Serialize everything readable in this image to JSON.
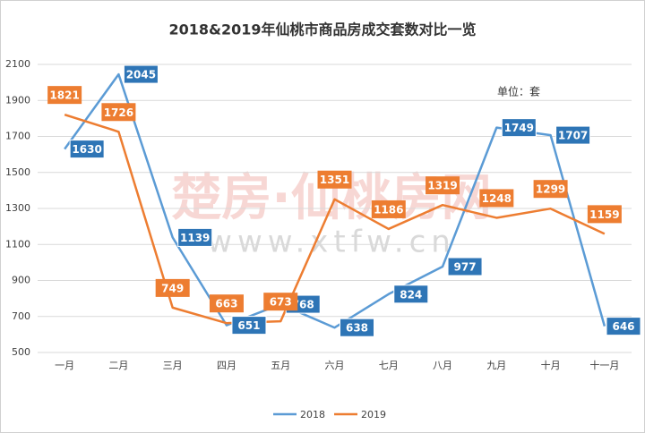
{
  "chart_data": {
    "type": "line",
    "title": "2018&2019年仙桃市商品房成交套数对比一览",
    "annotation": "单位：套",
    "watermark": "楚房·仙桃房网",
    "watermark_url": "www.xtfw.cn",
    "categories": [
      "一月",
      "二月",
      "三月",
      "四月",
      "五月",
      "六月",
      "七月",
      "八月",
      "九月",
      "十月",
      "十一月"
    ],
    "series": [
      {
        "name": "2018",
        "color": "#5b9bd5",
        "label_color": "#2e75b6",
        "values": [
          1630,
          2045,
          1139,
          651,
          768,
          638,
          824,
          977,
          1749,
          1707,
          646
        ]
      },
      {
        "name": "2019",
        "color": "#ed7d31",
        "label_color": "#ed7d31",
        "values": [
          1821,
          1726,
          749,
          663,
          673,
          1351,
          1186,
          1319,
          1248,
          1299,
          1159
        ]
      }
    ],
    "ylim": [
      500,
      2100
    ],
    "yticks": [
      500,
      700,
      900,
      1100,
      1300,
      1500,
      1700,
      1900,
      2100
    ],
    "grid": true
  }
}
